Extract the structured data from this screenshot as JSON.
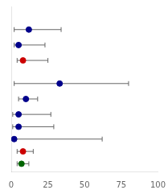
{
  "chart_data": {
    "type": "scatter",
    "x": [
      12,
      5,
      8,
      33,
      10,
      5,
      5,
      2,
      8,
      7
    ],
    "values": [
      9,
      8,
      7,
      5.5,
      4.5,
      3.5,
      2.7,
      1.9,
      1.1,
      0.3
    ],
    "xerr_low": [
      10,
      3,
      4,
      31,
      5,
      4,
      4,
      1,
      4,
      3
    ],
    "xerr_high": [
      22,
      18,
      17,
      47,
      8,
      22,
      24,
      60,
      7,
      5
    ],
    "colors": [
      "#00008B",
      "#00008B",
      "#CC0000",
      "#00008B",
      "#00008B",
      "#00008B",
      "#00008B",
      "#00008B",
      "#CC0000",
      "#006400"
    ],
    "marker": "circle",
    "xlim": [
      0,
      100
    ],
    "xticks": [
      0,
      25,
      50,
      75,
      100
    ],
    "ylim": [
      -0.2,
      10.5
    ],
    "grid": false,
    "tick_labels": "x"
  }
}
